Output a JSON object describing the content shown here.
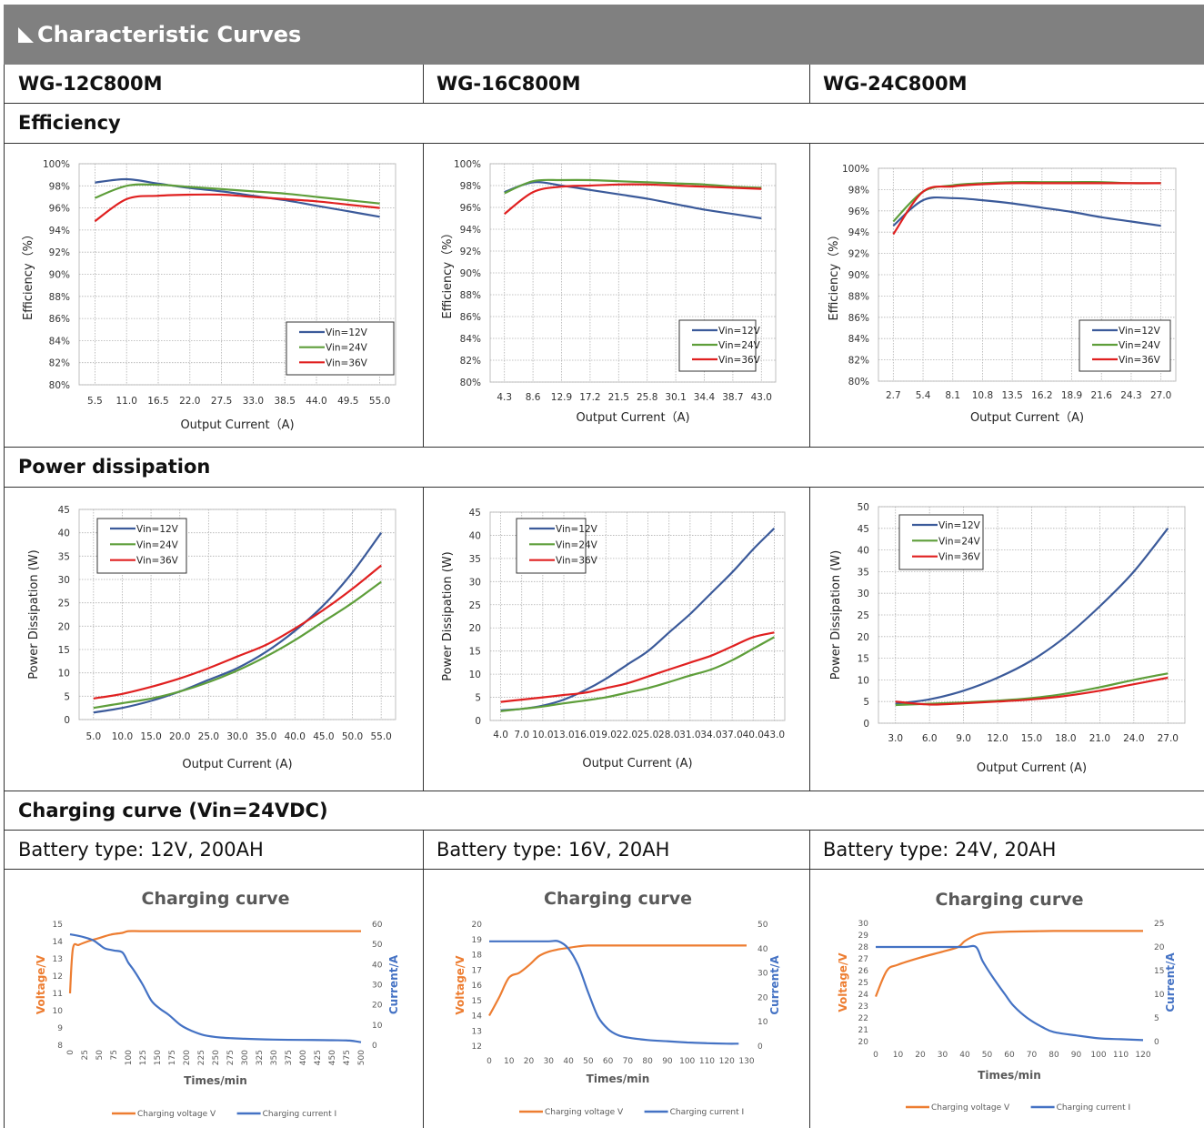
{
  "banner": {
    "title": "Characteristic Curves"
  },
  "models": [
    "WG-12C800M",
    "WG-16C800M",
    "WG-24C800M"
  ],
  "sections": {
    "efficiency": "Efficiency",
    "dissipation": "Power dissipation",
    "charging": "Charging curve (Vin=24VDC)"
  },
  "battery_types": [
    "Battery type: 12V, 200AH",
    "Battery type: 16V, 20AH",
    "Battery type: 24V, 20AH"
  ],
  "colors": {
    "vin12": "#3b5a9a",
    "vin24": "#5e9e3a",
    "vin36": "#e02020",
    "voltage": "#ed7d31",
    "current": "#4472c4",
    "banner": "#808080"
  },
  "chart_data": [
    {
      "type": "line",
      "id": "eff1",
      "xlabel": "Output Current（A)",
      "ylabel": "Efficiency（%）",
      "categories": [
        "5.5",
        "11.0",
        "16.5",
        "22.0",
        "27.5",
        "33.0",
        "38.5",
        "44.0",
        "49.5",
        "55.0"
      ],
      "ylim": [
        80,
        100
      ],
      "yticks": [
        "80%",
        "82%",
        "84%",
        "86%",
        "88%",
        "90%",
        "92%",
        "94%",
        "96%",
        "98%",
        "100%"
      ],
      "legend": "bottom-right",
      "grid": true,
      "series": [
        {
          "name": "Vin=12V",
          "color": "#3b5a9a",
          "values": [
            98.3,
            98.6,
            98.2,
            97.8,
            97.5,
            97.1,
            96.7,
            96.2,
            95.7,
            95.2
          ]
        },
        {
          "name": "Vin=24V",
          "color": "#5e9e3a",
          "values": [
            96.9,
            98.0,
            98.1,
            97.9,
            97.7,
            97.5,
            97.3,
            97.0,
            96.7,
            96.4
          ]
        },
        {
          "name": "Vin=36V",
          "color": "#e02020",
          "values": [
            94.8,
            96.8,
            97.1,
            97.2,
            97.2,
            97.0,
            96.8,
            96.6,
            96.3,
            96.0
          ]
        }
      ]
    },
    {
      "type": "line",
      "id": "eff2",
      "xlabel": "Output Current（A)",
      "ylabel": "Efficiency（%）",
      "categories": [
        "4.3",
        "8.6",
        "12.9",
        "17.2",
        "21.5",
        "25.8",
        "30.1",
        "34.4",
        "38.7",
        "43.0"
      ],
      "ylim": [
        80,
        100
      ],
      "yticks": [
        "80%",
        "82%",
        "84%",
        "86%",
        "88%",
        "90%",
        "92%",
        "94%",
        "96%",
        "98%",
        "100%"
      ],
      "legend": "bottom-right",
      "grid": true,
      "series": [
        {
          "name": "Vin=12V",
          "color": "#3b5a9a",
          "values": [
            97.4,
            98.3,
            98.0,
            97.6,
            97.2,
            96.8,
            96.3,
            95.8,
            95.4,
            95.0
          ]
        },
        {
          "name": "Vin=24V",
          "color": "#5e9e3a",
          "values": [
            97.3,
            98.4,
            98.5,
            98.5,
            98.4,
            98.3,
            98.2,
            98.1,
            97.9,
            97.8
          ]
        },
        {
          "name": "Vin=36V",
          "color": "#e02020",
          "values": [
            95.4,
            97.4,
            97.9,
            98.0,
            98.1,
            98.1,
            98.0,
            97.9,
            97.8,
            97.7
          ]
        }
      ]
    },
    {
      "type": "line",
      "id": "eff3",
      "xlabel": "Output Current（A)",
      "ylabel": "Efficiency（%）",
      "categories": [
        "2.7",
        "5.4",
        "8.1",
        "10.8",
        "13.5",
        "16.2",
        "18.9",
        "21.6",
        "24.3",
        "27.0"
      ],
      "ylim": [
        80,
        100
      ],
      "yticks": [
        "80%",
        "82%",
        "84%",
        "86%",
        "88%",
        "90%",
        "92%",
        "94%",
        "96%",
        "98%",
        "100%"
      ],
      "legend": "bottom-right",
      "grid": true,
      "series": [
        {
          "name": "Vin=12V",
          "color": "#3b5a9a",
          "values": [
            94.6,
            97.0,
            97.2,
            97.0,
            96.7,
            96.3,
            95.9,
            95.4,
            95.0,
            94.6
          ]
        },
        {
          "name": "Vin=24V",
          "color": "#5e9e3a",
          "values": [
            95.0,
            97.8,
            98.4,
            98.6,
            98.7,
            98.7,
            98.7,
            98.7,
            98.6,
            98.6
          ]
        },
        {
          "name": "Vin=36V",
          "color": "#e02020",
          "values": [
            93.8,
            97.8,
            98.3,
            98.5,
            98.6,
            98.6,
            98.6,
            98.6,
            98.6,
            98.6
          ]
        }
      ]
    },
    {
      "type": "line",
      "id": "pd1",
      "xlabel": "Output Current (A)",
      "ylabel": "Power Dissipation (W)",
      "categories": [
        "5.0",
        "10.0",
        "15.0",
        "20.0",
        "25.0",
        "30.0",
        "35.0",
        "40.0",
        "45.0",
        "50.0",
        "55.0"
      ],
      "ylim": [
        0,
        45
      ],
      "yticks": [
        "0",
        "5",
        "10",
        "15",
        "20",
        "25",
        "30",
        "35",
        "40",
        "45"
      ],
      "legend": "top-left",
      "grid": true,
      "series": [
        {
          "name": "Vin=12V",
          "color": "#3b5a9a",
          "values": [
            1.5,
            2.5,
            4.0,
            6.0,
            8.5,
            11.0,
            14.5,
            19.0,
            24.5,
            31.5,
            40.0
          ]
        },
        {
          "name": "Vin=24V",
          "color": "#5e9e3a",
          "values": [
            2.5,
            3.5,
            4.5,
            6.0,
            8.0,
            10.5,
            13.5,
            17.0,
            21.0,
            25.0,
            29.5
          ]
        },
        {
          "name": "Vin=36V",
          "color": "#e02020",
          "values": [
            4.5,
            5.5,
            7.0,
            8.8,
            11.0,
            13.5,
            16.0,
            19.5,
            23.5,
            28.0,
            33.0
          ]
        }
      ]
    },
    {
      "type": "line",
      "id": "pd2",
      "xlabel": "Output Current (A)",
      "ylabel": "Power Dissipation (W)",
      "categories": [
        "4.0",
        "7.0",
        "10.0",
        "13.0",
        "16.0",
        "19.0",
        "22.0",
        "25.0",
        "28.0",
        "31.0",
        "34.0",
        "37.0",
        "40.0",
        "43.0"
      ],
      "ylim": [
        0,
        45
      ],
      "yticks": [
        "0",
        "5",
        "10",
        "15",
        "20",
        "25",
        "30",
        "35",
        "40",
        "45"
      ],
      "legend": "top-left",
      "grid": true,
      "series": [
        {
          "name": "Vin=12V",
          "color": "#3b5a9a",
          "values": [
            2.2,
            2.5,
            3.2,
            4.5,
            6.5,
            9.0,
            12.0,
            15.0,
            19.0,
            23.0,
            27.5,
            32.0,
            37.0,
            41.5
          ]
        },
        {
          "name": "Vin=24V",
          "color": "#5e9e3a",
          "values": [
            2.0,
            2.5,
            3.0,
            3.7,
            4.3,
            5.0,
            6.0,
            7.0,
            8.3,
            9.7,
            11.0,
            13.0,
            15.5,
            18.0
          ]
        },
        {
          "name": "Vin=36V",
          "color": "#e02020",
          "values": [
            4.0,
            4.5,
            5.0,
            5.5,
            6.0,
            7.0,
            8.0,
            9.5,
            11.0,
            12.5,
            14.0,
            16.0,
            18.0,
            19.0
          ]
        }
      ]
    },
    {
      "type": "line",
      "id": "pd3",
      "xlabel": "Output Current (A)",
      "ylabel": "Power Dissipation (W)",
      "categories": [
        "3.0",
        "6.0",
        "9.0",
        "12.0",
        "15.0",
        "18.0",
        "21.0",
        "24.0",
        "27.0"
      ],
      "ylim": [
        0,
        50
      ],
      "yticks": [
        "0",
        "5",
        "10",
        "15",
        "20",
        "25",
        "30",
        "35",
        "40",
        "45",
        "50"
      ],
      "legend": "top-left",
      "grid": true,
      "series": [
        {
          "name": "Vin=12V",
          "color": "#3b5a9a",
          "values": [
            4.5,
            5.5,
            7.5,
            10.5,
            14.5,
            20.0,
            27.0,
            35.0,
            45.0
          ]
        },
        {
          "name": "Vin=24V",
          "color": "#5e9e3a",
          "values": [
            4.2,
            4.5,
            4.8,
            5.2,
            5.8,
            6.8,
            8.3,
            10.0,
            11.5
          ]
        },
        {
          "name": "Vin=36V",
          "color": "#e02020",
          "values": [
            5.0,
            4.3,
            4.6,
            5.0,
            5.5,
            6.3,
            7.5,
            9.0,
            10.5
          ]
        }
      ]
    },
    {
      "type": "line",
      "id": "ch1",
      "title": "Charging curve",
      "xlabel": "Times/min",
      "ylabel": "Voltage/V",
      "y2label": "Current/A",
      "xticks": [
        "0",
        "25",
        "50",
        "75",
        "100",
        "125",
        "150",
        "175",
        "200",
        "225",
        "250",
        "275",
        "300",
        "325",
        "350",
        "375",
        "400",
        "425",
        "450",
        "475",
        "500"
      ],
      "xlim": [
        0,
        500
      ],
      "xtick_rotate": true,
      "ylim": [
        8,
        15
      ],
      "yticks": [
        "8",
        "9",
        "10",
        "11",
        "12",
        "13",
        "14",
        "15"
      ],
      "y2lim": [
        0,
        60
      ],
      "y2ticks": [
        "0",
        "10",
        "20",
        "30",
        "40",
        "50",
        "60"
      ],
      "legend": "bottom",
      "series": [
        {
          "name": "Charging voltage V",
          "axis": "left",
          "color": "#ed7d31",
          "x": [
            0,
            5,
            15,
            30,
            50,
            70,
            90,
            100,
            120,
            150,
            200,
            300,
            400,
            500
          ],
          "values": [
            11.0,
            13.6,
            13.8,
            14.0,
            14.2,
            14.4,
            14.5,
            14.6,
            14.6,
            14.6,
            14.6,
            14.6,
            14.6,
            14.6
          ]
        },
        {
          "name": "Charging current I",
          "axis": "right",
          "color": "#4472c4",
          "x": [
            0,
            10,
            25,
            40,
            50,
            60,
            75,
            90,
            100,
            110,
            125,
            140,
            155,
            170,
            190,
            210,
            230,
            260,
            300,
            350,
            400,
            450,
            480,
            500
          ],
          "values": [
            55,
            54.5,
            53.5,
            52,
            50,
            48,
            47,
            46,
            41,
            37,
            30,
            22,
            18,
            15,
            10,
            7,
            5,
            3.8,
            3.2,
            2.8,
            2.6,
            2.5,
            2.3,
            1.5
          ]
        }
      ]
    },
    {
      "type": "line",
      "id": "ch2",
      "title": "Charging curve",
      "xlabel": "Times/min",
      "ylabel": "Voltage/V",
      "y2label": "Current/A",
      "xticks": [
        "0",
        "10",
        "20",
        "30",
        "40",
        "50",
        "60",
        "70",
        "80",
        "90",
        "100",
        "110",
        "120",
        "130"
      ],
      "xlim": [
        0,
        130
      ],
      "ylim": [
        12,
        20
      ],
      "yticks": [
        "12",
        "13",
        "14",
        "15",
        "16",
        "17",
        "18",
        "19",
        "20"
      ],
      "y2lim": [
        0,
        50
      ],
      "y2ticks": [
        "0",
        "10",
        "20",
        "30",
        "40",
        "50"
      ],
      "legend": "bottom",
      "series": [
        {
          "name": "Charging voltage V",
          "axis": "left",
          "color": "#ed7d31",
          "x": [
            0,
            5,
            10,
            15,
            20,
            25,
            30,
            35,
            40,
            45,
            50,
            60,
            80,
            100,
            120,
            130
          ],
          "values": [
            14.0,
            15.2,
            16.5,
            16.8,
            17.3,
            17.9,
            18.2,
            18.35,
            18.45,
            18.55,
            18.6,
            18.6,
            18.6,
            18.6,
            18.6,
            18.6
          ]
        },
        {
          "name": "Charging current I",
          "axis": "right",
          "color": "#4472c4",
          "x": [
            0,
            10,
            20,
            30,
            35,
            40,
            45,
            50,
            55,
            60,
            65,
            70,
            80,
            90,
            100,
            110,
            120,
            126
          ],
          "values": [
            43,
            43,
            43,
            43,
            43,
            40,
            33,
            22,
            12,
            7,
            4.5,
            3.5,
            2.5,
            2,
            1.5,
            1.2,
            1,
            1
          ]
        }
      ]
    },
    {
      "type": "line",
      "id": "ch3",
      "title": "Charging curve",
      "xlabel": "Times/min",
      "ylabel": "Voltage/V",
      "y2label": "Current/A",
      "xticks": [
        "0",
        "10",
        "20",
        "30",
        "40",
        "50",
        "60",
        "70",
        "80",
        "90",
        "100",
        "110",
        "120"
      ],
      "xlim": [
        0,
        120
      ],
      "ylim": [
        20,
        30
      ],
      "yticks": [
        "20",
        "21",
        "22",
        "23",
        "24",
        "25",
        "26",
        "27",
        "28",
        "29",
        "30"
      ],
      "y2lim": [
        0,
        25
      ],
      "y2ticks": [
        "0",
        "5",
        "10",
        "15",
        "20",
        "25"
      ],
      "legend": "bottom",
      "series": [
        {
          "name": "Charging voltage V",
          "axis": "left",
          "color": "#ed7d31",
          "x": [
            0,
            5,
            10,
            20,
            30,
            37,
            40,
            45,
            50,
            60,
            80,
            100,
            120
          ],
          "values": [
            23.8,
            26.0,
            26.5,
            27.1,
            27.6,
            28.0,
            28.5,
            29.0,
            29.2,
            29.3,
            29.35,
            29.35,
            29.35
          ]
        },
        {
          "name": "Charging current I",
          "axis": "right",
          "color": "#4472c4",
          "x": [
            0,
            10,
            20,
            30,
            40,
            45,
            48,
            52,
            58,
            62,
            68,
            75,
            80,
            90,
            100,
            110,
            120
          ],
          "values": [
            20,
            20,
            20,
            20,
            20,
            20,
            17,
            14,
            10,
            7.5,
            5,
            3,
            2,
            1.3,
            0.7,
            0.5,
            0.3
          ]
        }
      ]
    }
  ]
}
